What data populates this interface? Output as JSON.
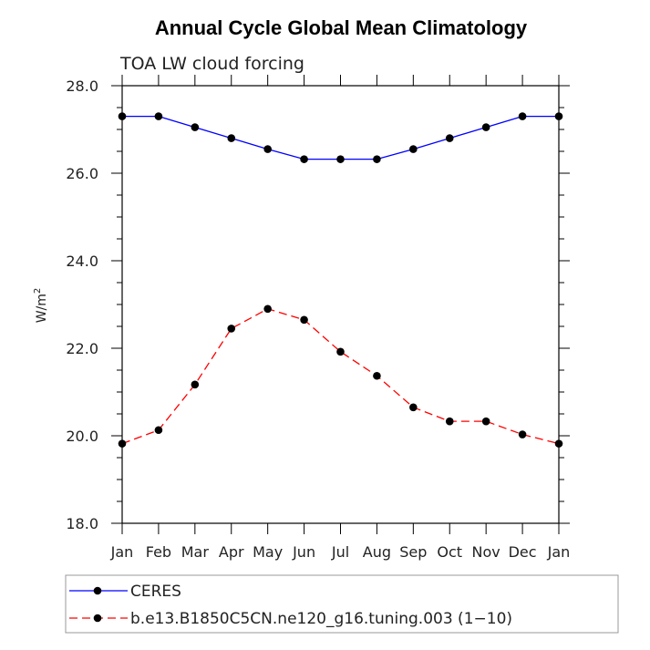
{
  "chart_data": {
    "type": "line",
    "title": "Annual Cycle Global Mean Climatology",
    "subtitle": "TOA LW cloud forcing",
    "xlabel": "",
    "ylabel": "W/m",
    "ylabel_superscript": "2",
    "categories": [
      "Jan",
      "Feb",
      "Mar",
      "Apr",
      "May",
      "Jun",
      "Jul",
      "Aug",
      "Sep",
      "Oct",
      "Nov",
      "Dec",
      "Jan"
    ],
    "ylim": [
      18.0,
      28.0
    ],
    "yticks": [
      18.0,
      20.0,
      22.0,
      24.0,
      26.0,
      28.0
    ],
    "ytick_labels": [
      "18.0",
      "20.0",
      "22.0",
      "24.0",
      "26.0",
      "28.0"
    ],
    "grid": false,
    "legend_position": "bottom",
    "series": [
      {
        "name": "CERES",
        "color": "#0000ff",
        "dash": "solid",
        "values": [
          27.3,
          27.3,
          27.05,
          26.8,
          26.55,
          26.32,
          26.32,
          26.32,
          26.55,
          26.8,
          27.05,
          27.3,
          27.3
        ]
      },
      {
        "name": "b.e13.B1850C5CN.ne120_g16.tuning.003 (1−10)",
        "color": "#ff0000",
        "dash": "dashed",
        "values": [
          19.82,
          20.13,
          21.17,
          22.45,
          22.9,
          22.65,
          21.92,
          21.37,
          20.65,
          20.33,
          20.33,
          20.03,
          19.82
        ]
      }
    ]
  }
}
